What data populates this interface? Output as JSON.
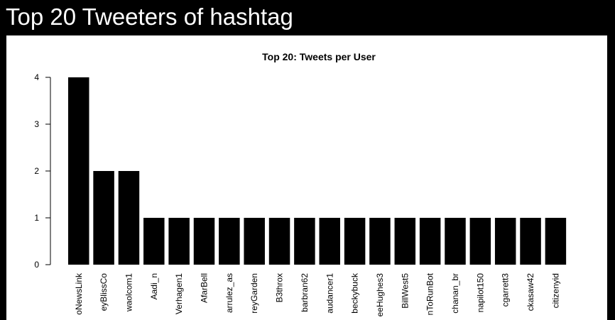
{
  "page": {
    "title": "Top 20 Tweeters of hashtag"
  },
  "chart_data": {
    "type": "bar",
    "title": "Top 20: Tweets per User",
    "xlabel": "",
    "ylabel": "",
    "ylim": [
      0,
      4
    ],
    "yticks": [
      0,
      1,
      2,
      3,
      4
    ],
    "grid": false,
    "bar_color": "#000000",
    "categories": [
      "oNewsLink",
      "eyBlissCo",
      "waolcom1",
      "Aadi_n",
      "Verhagen1",
      "AfarBell",
      "arrulez_as",
      "reyGarden",
      "B3throx",
      "barbran62",
      "audancer1",
      "beckybuck",
      "eeHughes3",
      "BillWest5",
      "nToRunBot",
      "chanan_br",
      "napilot150",
      "cgarrett3",
      "ckasaw42",
      "citizenyid"
    ],
    "values": [
      4,
      2,
      2,
      1,
      1,
      1,
      1,
      1,
      1,
      1,
      1,
      1,
      1,
      1,
      1,
      1,
      1,
      1,
      1,
      1
    ]
  },
  "colors": {
    "background": "#000000",
    "panel": "#ffffff",
    "title_text": "#ffffff",
    "chart_ink": "#000000"
  }
}
